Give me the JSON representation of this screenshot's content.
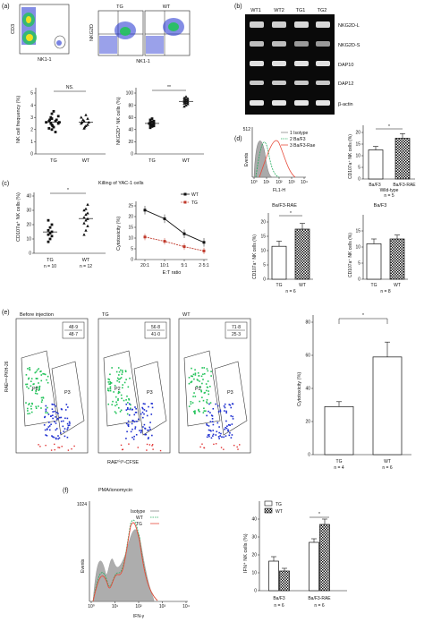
{
  "panels": {
    "a": {
      "label": "(a)",
      "flow": {
        "y_axis_left": "CD3",
        "x_axis_left": "NK1-1",
        "titles": [
          "TG",
          "WT"
        ],
        "y_axis_right": "NKG2D",
        "x_axis_right": "NK1-1"
      },
      "freq": {
        "ylabel": "NK cell frequency (%)",
        "sig": "NS.",
        "yticks": [
          "0",
          "1",
          "2",
          "3",
          "4",
          "5"
        ],
        "groups": [
          "TG",
          "WT"
        ],
        "chart_data": {
          "type": "scatter",
          "categories": [
            "TG",
            "WT"
          ],
          "ylim": [
            0,
            5
          ],
          "series": [
            {
              "values": [
                2.0,
                2.2,
                2.3,
                2.4,
                2.5,
                2.5,
                2.6,
                2.6,
                2.7,
                2.7,
                2.8,
                2.8,
                2.9,
                3.0,
                3.1,
                3.3,
                3.5,
                1.8,
                2.1
              ]
            },
            {
              "values": [
                2.1,
                2.3,
                2.4,
                2.5,
                2.6,
                2.6,
                2.7,
                2.8,
                2.9,
                3.0,
                3.2,
                2.2
              ]
            }
          ]
        }
      },
      "nkg2d": {
        "ylabel": "NKG2D⁺ NK cells (%)",
        "sig": "**",
        "yticks": [
          "0",
          "20",
          "40",
          "60",
          "80",
          "100"
        ],
        "groups": [
          "TG",
          "WT"
        ],
        "chart_data": {
          "type": "scatter",
          "categories": [
            "TG",
            "WT"
          ],
          "ylim": [
            0,
            100
          ],
          "series": [
            {
              "values": [
                43,
                45,
                46,
                47,
                48,
                49,
                50,
                50,
                51,
                52,
                53,
                54,
                56,
                58
              ]
            },
            {
              "values": [
                78,
                80,
                82,
                83,
                84,
                85,
                86,
                87,
                88,
                89,
                90,
                91,
                92,
                94
              ]
            }
          ]
        }
      }
    },
    "b": {
      "label": "(b)",
      "lanes": [
        "WT1",
        "WT2",
        "TG1",
        "TG2"
      ],
      "bands": [
        "NKG2D-L",
        "NKG2D-S",
        "DAP10",
        "DAP12",
        "β-actin"
      ]
    },
    "c": {
      "label": "(c)",
      "title": "Killing of YAC-1 cells",
      "cd107": {
        "ylabel": "CD107a⁺ NK cells (%)",
        "sig": "*",
        "yticks": [
          "0",
          "10",
          "20",
          "30",
          "40"
        ],
        "groups": [
          "TG",
          "WT"
        ],
        "ns": [
          "n = 10",
          "n = 12"
        ],
        "chart_data": {
          "type": "scatter",
          "categories": [
            "TG",
            "WT"
          ],
          "ylim": [
            0,
            40
          ],
          "series": [
            {
              "values": [
                8,
                10,
                12,
                13,
                14,
                15,
                16,
                18,
                20,
                23
              ]
            },
            {
              "values": [
                13,
                16,
                19,
                21,
                23,
                24,
                25,
                27,
                28,
                30,
                31,
                34
              ]
            }
          ]
        }
      },
      "cyto": {
        "ylabel": "Cytotoxicity (%)",
        "xlabel": "E:T ratio",
        "yticks": [
          "0",
          "5",
          "10",
          "15",
          "20",
          "25"
        ],
        "legend": [
          "WT",
          "TG"
        ],
        "chart_data": {
          "type": "line",
          "x": [
            "20:1",
            "10:1",
            "5:1",
            "2·5:1"
          ],
          "ylim": [
            0,
            25
          ],
          "series": [
            {
              "name": "WT",
              "values": [
                23,
                19,
                12,
                8
              ]
            },
            {
              "name": "TG",
              "values": [
                10.5,
                8.5,
                6,
                4
              ]
            }
          ]
        }
      }
    },
    "d": {
      "label": "(d)",
      "hist": {
        "ytick": "512",
        "ylabel": "Events",
        "xlabel": "FL1-H",
        "xticks": [
          "10⁰",
          "10¹",
          "10²",
          "10³",
          "10⁴"
        ],
        "legend": [
          "1 Isotype",
          "2 Ba/F3",
          "3 Ba/F3-Rae"
        ]
      },
      "wt": {
        "ylabel": "CD107a⁺ NK cells (%)",
        "sig": "*",
        "yticks": [
          "0",
          "5",
          "10",
          "15",
          "20"
        ],
        "categories": [
          "Ba/F3",
          "Ba/F3-RAE"
        ],
        "caption": "Wild-type",
        "n": "n = 5",
        "chart_data": {
          "type": "bar",
          "categories": [
            "Ba/F3",
            "Ba/F3-RAE"
          ],
          "values": [
            12.5,
            17.5
          ],
          "errors": [
            1.5,
            2
          ],
          "ylim": [
            0,
            20
          ]
        }
      },
      "rae": {
        "title": "Ba/F3-RAE",
        "ylabel": "CD107a⁺ NK cells (%)",
        "sig": "*",
        "yticks": [
          "0",
          "5",
          "10",
          "15",
          "20"
        ],
        "categories": [
          "TG",
          "WT"
        ],
        "n": "n = 6",
        "chart_data": {
          "type": "bar",
          "categories": [
            "TG",
            "WT"
          ],
          "values": [
            11.5,
            17.5
          ],
          "errors": [
            1.8,
            2
          ],
          "ylim": [
            0,
            20
          ]
        }
      },
      "baf3": {
        "title": "Ba/F3",
        "ylabel": "CD107a⁺ NK cells (%)",
        "yticks": [
          "0",
          "5",
          "10",
          "15"
        ],
        "categories": [
          "TG",
          "WT"
        ],
        "n": "n = 8",
        "chart_data": {
          "type": "bar",
          "categories": [
            "TG",
            "WT"
          ],
          "values": [
            11,
            12.5
          ],
          "errors": [
            1.5,
            1.2
          ],
          "ylim": [
            0,
            15
          ]
        }
      }
    },
    "e": {
      "label": "(e)",
      "titles": [
        "Before injection",
        "TG",
        "WT"
      ],
      "ratios": [
        [
          "48·9",
          "48·7"
        ],
        [
          "56·8",
          "41·0"
        ],
        [
          "71·8",
          "25·3"
        ]
      ],
      "gates": [
        "P2",
        "P3"
      ],
      "ylabel": "RAEˡᵒʷ-PKH-26",
      "xlabel": "RAEʰⁱᵍʰ-CFSE",
      "bar": {
        "ylabel": "Cytotoxicity (%)",
        "sig": "*",
        "yticks": [
          "0",
          "20",
          "40",
          "60",
          "80"
        ],
        "categories": [
          "TG",
          "WT"
        ],
        "ns": [
          "n = 4",
          "n = 6"
        ],
        "chart_data": {
          "type": "bar",
          "categories": [
            "TG",
            "WT"
          ],
          "values": [
            29,
            59
          ],
          "errors": [
            3,
            9
          ],
          "ylim": [
            0,
            80
          ]
        }
      }
    },
    "f": {
      "label": "(f)",
      "title": "PMA/ionomycin",
      "hist": {
        "ytick": "1024",
        "ylabel": "Events",
        "xlabel": "IFN-γ",
        "xticks": [
          "10⁰",
          "10¹",
          "10²",
          "10³",
          "10⁴"
        ],
        "legend": [
          "Isotype",
          "WT",
          "TG"
        ]
      },
      "bar": {
        "ylabel": "IFN⁺ NK cells (%)",
        "sig": "*",
        "yticks": [
          "0",
          "10",
          "20",
          "30",
          "40"
        ],
        "legend": [
          "TG",
          "WT"
        ],
        "groups": [
          "Ba/F3",
          "Ba/F3-RAE"
        ],
        "ns": [
          "n = 6",
          "n = 6"
        ],
        "chart_data": {
          "type": "bar",
          "categories": [
            "Ba/F3",
            "Ba/F3-RAE"
          ],
          "ylim": [
            0,
            40
          ],
          "series": [
            {
              "name": "TG",
              "values": [
                16.5,
                27
              ],
              "errors": [
                2.5,
                2
              ]
            },
            {
              "name": "WT",
              "values": [
                11,
                37
              ],
              "errors": [
                1.5,
                3
              ]
            }
          ]
        }
      }
    }
  },
  "colors": {
    "wt_line": "#111111",
    "tg_line": "#c0392b",
    "isotype": "#888888",
    "green": "#27ae60",
    "red": "#e74c3c",
    "blue": "#2433c7",
    "flow_green": "#22c35a",
    "flow_blue": "#1e2fd0"
  }
}
